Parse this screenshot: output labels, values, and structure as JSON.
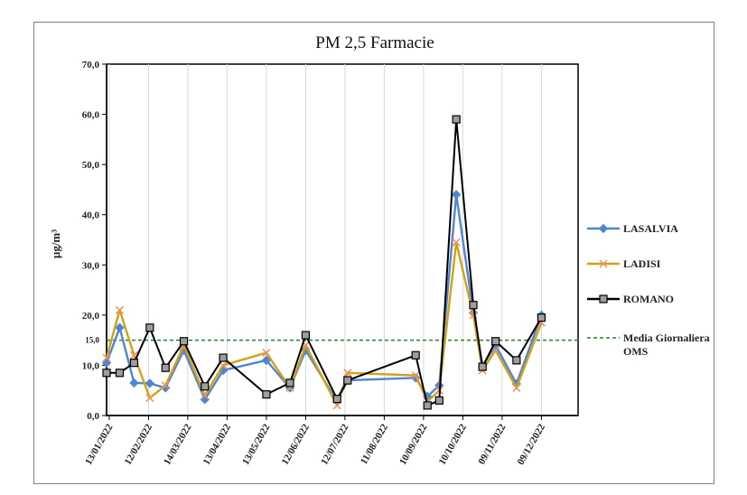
{
  "chart_data": {
    "type": "line",
    "title": "PM 2,5 Farmacie",
    "xlabel": "",
    "ylabel": "µg/m³",
    "ylim": [
      0,
      70
    ],
    "yticks": [
      "0,0",
      "10,0",
      "20,0",
      "30,0",
      "40,0",
      "50,0",
      "60,0",
      "70,0"
    ],
    "reference_tick": "15,0",
    "reference_value": 15,
    "xlim": [
      "2022-01-11",
      "2023-01-06"
    ],
    "x_tick_labels": [
      {
        "date": "2022-01-13",
        "label": "13/01/2022"
      },
      {
        "date": "2022-02-12",
        "label": "12/02/2022"
      },
      {
        "date": "2022-03-14",
        "label": "14/03/2022"
      },
      {
        "date": "2022-04-13",
        "label": "13/04/2022"
      },
      {
        "date": "2022-05-13",
        "label": "13/05/2022"
      },
      {
        "date": "2022-06-12",
        "label": "12/06/2022"
      },
      {
        "date": "2022-07-12",
        "label": "12/07/2022"
      },
      {
        "date": "2022-08-11",
        "label": "11/08/2022"
      },
      {
        "date": "2022-09-10",
        "label": "10/09/2022"
      },
      {
        "date": "2022-10-10",
        "label": "10/10/2022"
      },
      {
        "date": "2022-11-09",
        "label": "09/11/2022"
      },
      {
        "date": "2022-12-09",
        "label": "09/12/2022"
      }
    ],
    "grid": "vertical",
    "legend_position": "right",
    "series": [
      {
        "name": "LASALVIA",
        "color": "#4f86d4",
        "marker": "diamond",
        "points": [
          {
            "x": "2022-01-11",
            "y": 10.5
          },
          {
            "x": "2022-01-21",
            "y": 17.5
          },
          {
            "x": "2022-02-01",
            "y": 6.5
          },
          {
            "x": "2022-02-13",
            "y": 6.4
          },
          {
            "x": "2022-02-25",
            "y": 5.5
          },
          {
            "x": "2022-03-11",
            "y": 13.0
          },
          {
            "x": "2022-03-27",
            "y": 3.2
          },
          {
            "x": "2022-04-10",
            "y": 9.0
          },
          {
            "x": "2022-05-13",
            "y": 11.0
          },
          {
            "x": "2022-05-31",
            "y": 5.5
          },
          {
            "x": "2022-06-12",
            "y": 13.0
          },
          {
            "x": "2022-07-06",
            "y": 2.8
          },
          {
            "x": "2022-07-14",
            "y": 7.0
          },
          {
            "x": "2022-09-04",
            "y": 7.5
          },
          {
            "x": "2022-09-13",
            "y": 3.8
          },
          {
            "x": "2022-09-22",
            "y": 6.0
          },
          {
            "x": "2022-10-05",
            "y": 44.0
          },
          {
            "x": "2022-10-18",
            "y": 20.5
          },
          {
            "x": "2022-10-25",
            "y": 9.8
          },
          {
            "x": "2022-11-04",
            "y": 14.0
          },
          {
            "x": "2022-11-20",
            "y": 6.3
          },
          {
            "x": "2022-12-09",
            "y": 20.0
          }
        ]
      },
      {
        "name": "LADISI",
        "color": "#d4a017",
        "marker": "x",
        "points": [
          {
            "x": "2022-01-11",
            "y": 11.5
          },
          {
            "x": "2022-01-21",
            "y": 21.0
          },
          {
            "x": "2022-02-01",
            "y": 12.0
          },
          {
            "x": "2022-02-13",
            "y": 3.5
          },
          {
            "x": "2022-02-25",
            "y": 6.0
          },
          {
            "x": "2022-03-11",
            "y": 14.0
          },
          {
            "x": "2022-03-27",
            "y": 4.0
          },
          {
            "x": "2022-04-10",
            "y": 10.0
          },
          {
            "x": "2022-05-13",
            "y": 12.5
          },
          {
            "x": "2022-05-31",
            "y": 5.5
          },
          {
            "x": "2022-06-12",
            "y": 14.0
          },
          {
            "x": "2022-07-06",
            "y": 2.0
          },
          {
            "x": "2022-07-14",
            "y": 8.5
          },
          {
            "x": "2022-09-04",
            "y": 8.0
          },
          {
            "x": "2022-09-13",
            "y": 2.8
          },
          {
            "x": "2022-09-22",
            "y": 5.0
          },
          {
            "x": "2022-10-05",
            "y": 34.5
          },
          {
            "x": "2022-10-18",
            "y": 20.0
          },
          {
            "x": "2022-10-25",
            "y": 9.0
          },
          {
            "x": "2022-11-04",
            "y": 13.0
          },
          {
            "x": "2022-11-20",
            "y": 5.5
          },
          {
            "x": "2022-12-09",
            "y": 18.5
          }
        ]
      },
      {
        "name": "ROMANO",
        "color": "#000000",
        "marker": "square",
        "points": [
          {
            "x": "2022-01-11",
            "y": 8.5
          },
          {
            "x": "2022-01-21",
            "y": 8.5
          },
          {
            "x": "2022-02-01",
            "y": 10.5
          },
          {
            "x": "2022-02-13",
            "y": 17.5
          },
          {
            "x": "2022-02-25",
            "y": 9.5
          },
          {
            "x": "2022-03-11",
            "y": 14.8
          },
          {
            "x": "2022-03-27",
            "y": 5.8
          },
          {
            "x": "2022-04-10",
            "y": 11.5
          },
          {
            "x": "2022-05-13",
            "y": 4.2
          },
          {
            "x": "2022-05-31",
            "y": 6.5
          },
          {
            "x": "2022-06-12",
            "y": 16.0
          },
          {
            "x": "2022-07-06",
            "y": 3.3
          },
          {
            "x": "2022-07-14",
            "y": 7.0
          },
          {
            "x": "2022-09-04",
            "y": 12.0
          },
          {
            "x": "2022-09-13",
            "y": 2.0
          },
          {
            "x": "2022-09-22",
            "y": 3.0
          },
          {
            "x": "2022-10-05",
            "y": 59.0
          },
          {
            "x": "2022-10-18",
            "y": 22.0
          },
          {
            "x": "2022-10-25",
            "y": 9.7
          },
          {
            "x": "2022-11-04",
            "y": 14.8
          },
          {
            "x": "2022-11-20",
            "y": 11.0
          },
          {
            "x": "2022-12-09",
            "y": 19.5
          }
        ]
      },
      {
        "name": "Media Giornaliera OMS",
        "color": "#2e7d32",
        "style": "dashed",
        "constant_y": 15
      }
    ]
  }
}
